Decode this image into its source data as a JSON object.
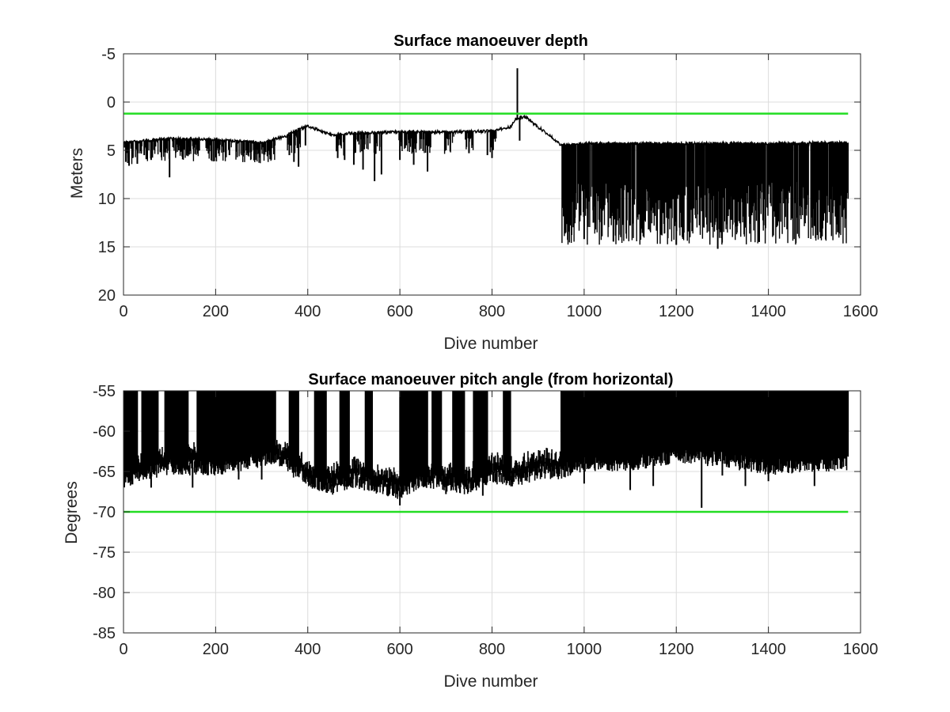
{
  "chart_data": [
    {
      "type": "line",
      "title": "Surface manoeuver depth",
      "xlabel": "Dive number",
      "ylabel": "Meters",
      "xlim": [
        0,
        1600
      ],
      "ylim": [
        -5,
        20
      ],
      "y_reversed": true,
      "grid": true,
      "xticks": [
        0,
        200,
        400,
        600,
        800,
        1000,
        1200,
        1400,
        1600
      ],
      "yticks": [
        -5,
        0,
        5,
        10,
        15,
        20
      ],
      "x_range": [
        1,
        1573
      ],
      "reference_line": {
        "value": 1.2,
        "color": "#22dd22"
      },
      "series_color": "#000000",
      "baseline": [
        [
          0,
          4.2
        ],
        [
          100,
          3.8
        ],
        [
          200,
          3.9
        ],
        [
          300,
          4.2
        ],
        [
          350,
          3.6
        ],
        [
          380,
          2.8
        ],
        [
          400,
          2.5
        ],
        [
          450,
          3.4
        ],
        [
          500,
          3.2
        ],
        [
          600,
          3.1
        ],
        [
          700,
          3.1
        ],
        [
          800,
          3.0
        ],
        [
          840,
          2.6
        ],
        [
          850,
          1.8
        ],
        [
          870,
          1.5
        ],
        [
          880,
          1.8
        ],
        [
          900,
          2.6
        ],
        [
          930,
          3.6
        ],
        [
          950,
          4.5
        ],
        [
          1000,
          4.3
        ],
        [
          1200,
          4.3
        ],
        [
          1400,
          4.3
        ],
        [
          1573,
          4.2
        ]
      ],
      "spikes": [
        [
          5,
          6.2
        ],
        [
          12,
          6.6
        ],
        [
          20,
          5.8
        ],
        [
          30,
          6.4
        ],
        [
          45,
          5.5
        ],
        [
          60,
          6.0
        ],
        [
          80,
          5.2
        ],
        [
          100,
          7.8
        ],
        [
          120,
          5.0
        ],
        [
          140,
          5.6
        ],
        [
          160,
          4.9
        ],
        [
          200,
          5.2
        ],
        [
          230,
          5.5
        ],
        [
          260,
          5.0
        ],
        [
          290,
          5.4
        ],
        [
          320,
          5.0
        ],
        [
          360,
          5.5
        ],
        [
          370,
          6.2
        ],
        [
          380,
          6.7
        ],
        [
          395,
          4.5
        ],
        [
          465,
          5.8
        ],
        [
          480,
          6.0
        ],
        [
          500,
          6.5
        ],
        [
          520,
          7.0
        ],
        [
          545,
          8.2
        ],
        [
          560,
          7.5
        ],
        [
          600,
          6.0
        ],
        [
          630,
          6.5
        ],
        [
          660,
          7.2
        ],
        [
          700,
          5.0
        ],
        [
          750,
          5.3
        ],
        [
          790,
          5.5
        ],
        [
          800,
          5.8
        ],
        [
          855,
          -3.5
        ],
        [
          860,
          4.0
        ],
        [
          960,
          13.5
        ],
        [
          980,
          12.0
        ],
        [
          1000,
          14.2
        ],
        [
          1020,
          12.5
        ],
        [
          1060,
          11.8
        ],
        [
          1100,
          12.8
        ],
        [
          1140,
          13.2
        ],
        [
          1180,
          12.0
        ],
        [
          1200,
          14.8
        ],
        [
          1230,
          12.5
        ],
        [
          1260,
          13.0
        ],
        [
          1290,
          15.2
        ],
        [
          1320,
          12.2
        ],
        [
          1350,
          13.0
        ],
        [
          1380,
          14.5
        ],
        [
          1420,
          12.5
        ],
        [
          1460,
          12.0
        ],
        [
          1500,
          12.8
        ],
        [
          1540,
          11.5
        ],
        [
          1565,
          11.0
        ]
      ]
    },
    {
      "type": "line",
      "title": "Surface manoeuver pitch angle (from horizontal)",
      "xlabel": "Dive number",
      "ylabel": "Degrees",
      "xlim": [
        0,
        1600
      ],
      "ylim": [
        -85,
        -55
      ],
      "grid": true,
      "xticks": [
        0,
        200,
        400,
        600,
        800,
        1000,
        1200,
        1400,
        1600
      ],
      "yticks": [
        -55,
        -60,
        -65,
        -70,
        -75,
        -80,
        -85
      ],
      "x_range": [
        1,
        1573
      ],
      "reference_line": {
        "value": -70,
        "color": "#22dd22"
      },
      "series_color": "#000000",
      "lower_envelope": [
        [
          0,
          -66
        ],
        [
          100,
          -64.5
        ],
        [
          200,
          -64.5
        ],
        [
          300,
          -63.5
        ],
        [
          330,
          -63
        ],
        [
          350,
          -64
        ],
        [
          400,
          -66
        ],
        [
          450,
          -67
        ],
        [
          500,
          -66
        ],
        [
          600,
          -67.5
        ],
        [
          650,
          -66
        ],
        [
          700,
          -66.5
        ],
        [
          750,
          -67
        ],
        [
          800,
          -65.5
        ],
        [
          850,
          -66
        ],
        [
          900,
          -65
        ],
        [
          950,
          -65
        ],
        [
          1000,
          -64
        ],
        [
          1100,
          -64
        ],
        [
          1200,
          -63
        ],
        [
          1300,
          -63.5
        ],
        [
          1400,
          -64.5
        ],
        [
          1500,
          -64
        ],
        [
          1573,
          -64
        ]
      ],
      "dense_ranges": [
        [
          0,
          30
        ],
        [
          40,
          75
        ],
        [
          90,
          140
        ],
        [
          160,
          330
        ],
        [
          360,
          380
        ],
        [
          415,
          440
        ],
        [
          470,
          490
        ],
        [
          525,
          540
        ],
        [
          600,
          660
        ],
        [
          670,
          690
        ],
        [
          715,
          740
        ],
        [
          760,
          790
        ],
        [
          825,
          840
        ],
        [
          950,
          1573
        ]
      ],
      "spikes": [
        [
          60,
          -67
        ],
        [
          150,
          -67
        ],
        [
          250,
          -66
        ],
        [
          300,
          -66
        ],
        [
          600,
          -69.2
        ],
        [
          700,
          -67.8
        ],
        [
          780,
          -68
        ],
        [
          1000,
          -66.5
        ],
        [
          1100,
          -67.3
        ],
        [
          1150,
          -66.8
        ],
        [
          1255,
          -69.5
        ],
        [
          1300,
          -65.5
        ],
        [
          1350,
          -66.8
        ],
        [
          1400,
          -66.2
        ],
        [
          1500,
          -66.8
        ]
      ]
    }
  ]
}
